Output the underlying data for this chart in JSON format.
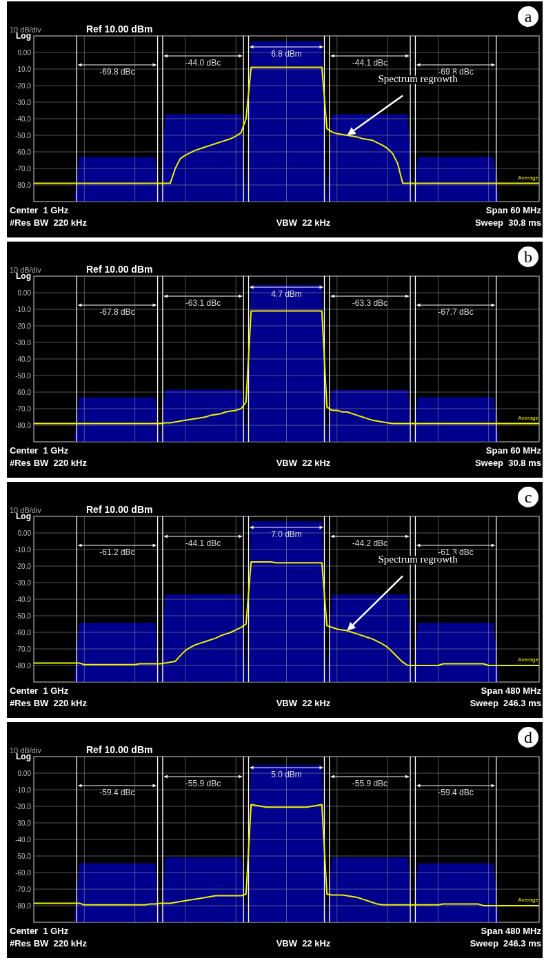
{
  "chart_data": [
    {
      "type": "line",
      "title": "a",
      "categories": [
        null,
        null,
        null,
        null,
        null,
        null,
        null,
        null,
        null,
        null,
        null,
        null,
        null,
        null,
        null,
        null,
        null,
        null,
        null,
        null,
        null,
        null,
        null,
        null,
        null,
        null,
        null,
        null,
        null,
        null,
        null,
        null,
        null,
        null,
        null,
        null,
        null,
        null,
        null,
        null,
        null,
        null,
        null,
        null,
        null,
        null,
        null,
        null,
        null,
        null,
        null,
        null,
        null,
        null,
        null,
        null,
        null,
        null,
        null,
        null,
        null,
        null,
        null,
        null,
        null,
        null,
        null,
        null,
        null,
        null,
        null,
        null,
        null,
        null,
        null,
        null,
        null,
        null,
        null,
        null,
        null,
        null,
        null,
        null,
        null,
        null,
        null,
        null,
        null,
        null,
        null,
        null,
        null,
        null,
        null,
        null,
        null,
        null,
        null,
        null,
        null
      ],
      "series": [
        {
          "type": "area",
          "color": "#00008c",
          "values": [
            -90,
            -90,
            -90,
            -90,
            -90,
            -90,
            -90,
            -90,
            -90,
            -63.0,
            -63.0,
            -63.0,
            -63.0,
            -63.0,
            -63.0,
            -63.0,
            -63.0,
            -63.0,
            -63.0,
            -63.0,
            -63.0,
            -63.0,
            -63.0,
            -63.0,
            -63.0,
            -90,
            -37.2,
            -37.2,
            -37.2,
            -37.2,
            -37.2,
            -37.2,
            -37.2,
            -37.2,
            -37.2,
            -37.2,
            -37.2,
            -37.2,
            -37.2,
            -37.2,
            -37.2,
            -37.2,
            -90,
            6.8,
            6.8,
            6.8,
            6.8,
            6.8,
            6.8,
            6.8,
            6.8,
            6.8,
            6.8,
            6.8,
            6.8,
            6.8,
            6.8,
            6.8,
            -90,
            -37.3,
            -37.3,
            -37.3,
            -37.3,
            -37.3,
            -37.3,
            -37.3,
            -37.3,
            -37.3,
            -37.3,
            -37.3,
            -37.3,
            -37.3,
            -37.3,
            -37.3,
            -37.3,
            -90,
            -63.0,
            -63.0,
            -63.0,
            -63.0,
            -63.0,
            -63.0,
            -63.0,
            -63.0,
            -63.0,
            -63.0,
            -63.0,
            -63.0,
            -63.0,
            -63.0,
            -63.0,
            -63.0,
            -90,
            -90,
            -90,
            -90,
            -90,
            -90,
            -90,
            -90,
            -90
          ]
        },
        {
          "type": "line",
          "color": "#f2f200",
          "values": [
            -79,
            -79,
            -79,
            -79,
            -79,
            -79,
            -79,
            -79,
            -79,
            -79,
            -79,
            -79,
            -79,
            -79,
            -79,
            -79,
            -79,
            -79,
            -79,
            -79,
            -79,
            -79,
            -79,
            -79,
            -79,
            -79,
            -79,
            -79,
            -70,
            -64,
            -62,
            -60.5,
            -59,
            -58,
            -57,
            -56,
            -55,
            -54,
            -53,
            -52,
            -50.5,
            -48.5,
            -40,
            -9,
            -9,
            -9,
            -9,
            -9,
            -9,
            -9,
            -9,
            -9,
            -9,
            -9,
            -9,
            -9,
            -9,
            -9,
            -46,
            -48,
            -49,
            -49.5,
            -50,
            -50.5,
            -51,
            -52,
            -52.5,
            -53,
            -54.5,
            -56,
            -58,
            -61,
            -67,
            -79,
            -79,
            -79,
            -79,
            -79,
            -79,
            -79,
            -79,
            -79,
            -79,
            -79,
            -79,
            -79,
            -79,
            -79,
            -79,
            -79,
            -79,
            -79,
            -79,
            -79,
            -79,
            -79,
            -79,
            -79,
            -79,
            -79,
            -79
          ]
        }
      ],
      "ylim": [
        -90,
        10
      ],
      "yticks": [
        {
          "value": 10,
          "label": "Log"
        },
        {
          "value": 0,
          "label": "0.00"
        },
        {
          "value": -10,
          "label": "-10.0"
        },
        {
          "value": -20,
          "label": "-20.0"
        },
        {
          "value": -30,
          "label": "-30.0"
        },
        {
          "value": -40,
          "label": "-40.0"
        },
        {
          "value": -50,
          "label": "-50.0"
        },
        {
          "value": -60,
          "label": "-60.0"
        },
        {
          "value": -70,
          "label": "-70.0"
        },
        {
          "value": -80,
          "label": "-80.0"
        },
        {
          "value": -90,
          "label": null
        }
      ],
      "grid": true,
      "tick_labels": "y",
      "annotations": [
        "10 dB/div",
        "Ref 10.00 dBm",
        "-69.8 dBc",
        "-44.0 dBc",
        "6.8 dBm",
        "-44.1 dBc",
        "-69.8 dBc",
        "Center  1 GHz",
        "#Res BW  220 kHz",
        "VBW  22 kHz",
        "Span 60 MHz",
        "Sweep  30.8 ms",
        "Average",
        "Spectrum regrowth"
      ]
    },
    {
      "type": "line",
      "title": "b",
      "categories": [
        null,
        null,
        null,
        null,
        null,
        null,
        null,
        null,
        null,
        null,
        null,
        null,
        null,
        null,
        null,
        null,
        null,
        null,
        null,
        null,
        null,
        null,
        null,
        null,
        null,
        null,
        null,
        null,
        null,
        null,
        null,
        null,
        null,
        null,
        null,
        null,
        null,
        null,
        null,
        null,
        null,
        null,
        null,
        null,
        null,
        null,
        null,
        null,
        null,
        null,
        null,
        null,
        null,
        null,
        null,
        null,
        null,
        null,
        null,
        null,
        null,
        null,
        null,
        null,
        null,
        null,
        null,
        null,
        null,
        null,
        null,
        null,
        null,
        null,
        null,
        null,
        null,
        null,
        null,
        null,
        null,
        null,
        null,
        null,
        null,
        null,
        null,
        null,
        null,
        null,
        null,
        null,
        null,
        null,
        null,
        null,
        null,
        null,
        null,
        null,
        null
      ],
      "series": [
        {
          "type": "area",
          "color": "#00008c",
          "values": [
            -90,
            -90,
            -90,
            -90,
            -90,
            -90,
            -90,
            -90,
            -90,
            -63.1,
            -63.1,
            -63.1,
            -63.1,
            -63.1,
            -63.1,
            -63.1,
            -63.1,
            -63.1,
            -63.1,
            -63.1,
            -63.1,
            -63.1,
            -63.1,
            -63.1,
            -63.1,
            -90,
            -58.4,
            -58.4,
            -58.4,
            -58.4,
            -58.4,
            -58.4,
            -58.4,
            -58.4,
            -58.4,
            -58.4,
            -58.4,
            -58.4,
            -58.4,
            -58.4,
            -58.4,
            -58.4,
            -90,
            4.7,
            4.7,
            4.7,
            4.7,
            4.7,
            4.7,
            4.7,
            4.7,
            4.7,
            4.7,
            4.7,
            4.7,
            4.7,
            4.7,
            4.7,
            -90,
            -58.6,
            -58.6,
            -58.6,
            -58.6,
            -58.6,
            -58.6,
            -58.6,
            -58.6,
            -58.6,
            -58.6,
            -58.6,
            -58.6,
            -58.6,
            -58.6,
            -58.6,
            -58.6,
            -90,
            -63.0,
            -63.0,
            -63.0,
            -63.0,
            -63.0,
            -63.0,
            -63.0,
            -63.0,
            -63.0,
            -63.0,
            -63.0,
            -63.0,
            -63.0,
            -63.0,
            -63.0,
            -63.0,
            -90,
            -90,
            -90,
            -90,
            -90,
            -90,
            -90,
            -90,
            -90
          ]
        },
        {
          "type": "line",
          "color": "#f2f200",
          "values": [
            -79,
            -79,
            -79,
            -79,
            -79,
            -79,
            -79,
            -79,
            -79,
            -79,
            -79,
            -79,
            -79,
            -79,
            -79,
            -79,
            -79,
            -79,
            -79,
            -79,
            -79,
            -79,
            -79,
            -79,
            -79,
            -79,
            -78.5,
            -78.5,
            -78,
            -77.5,
            -77,
            -76.5,
            -76,
            -75.5,
            -75,
            -74,
            -73.5,
            -73,
            -72,
            -71.5,
            -71,
            -70,
            -66,
            -11,
            -11,
            -11,
            -11,
            -11,
            -11,
            -11,
            -11,
            -11,
            -11,
            -11,
            -11,
            -11,
            -11,
            -11,
            -69,
            -71,
            -71,
            -72,
            -72,
            -73,
            -74,
            -75,
            -76,
            -77,
            -77.5,
            -78,
            -78.5,
            -79,
            -79,
            -79,
            -79,
            -79,
            -79,
            -79,
            -79,
            -79,
            -79,
            -79,
            -79,
            -79,
            -79,
            -79,
            -79,
            -79,
            -79,
            -79,
            -79,
            -79,
            -79,
            -79,
            -79,
            -79,
            -79,
            -79,
            -79,
            -79,
            -79
          ]
        }
      ],
      "ylim": [
        -90,
        10
      ],
      "yticks": [
        {
          "value": 10,
          "label": "Log"
        },
        {
          "value": 0,
          "label": "0.00"
        },
        {
          "value": -10,
          "label": "-10.0"
        },
        {
          "value": -20,
          "label": "-20.0"
        },
        {
          "value": -30,
          "label": "-30.0"
        },
        {
          "value": -40,
          "label": "-40.0"
        },
        {
          "value": -50,
          "label": "-50.0"
        },
        {
          "value": -60,
          "label": "-60.0"
        },
        {
          "value": -70,
          "label": "-70.0"
        },
        {
          "value": -80,
          "label": "-80.0"
        },
        {
          "value": -90,
          "label": null
        }
      ],
      "grid": true,
      "tick_labels": "y",
      "annotations": [
        "10 dB/div",
        "Ref 10.00 dBm",
        "-67.8 dBc",
        "-63.1 dBc",
        "4.7 dBm",
        "-63.3 dBc",
        "-67.7 dBc",
        "Center  1 GHz",
        "#Res BW  220 kHz",
        "VBW  22 kHz",
        "Span 60 MHz",
        "Sweep  30.8 ms",
        "Average"
      ]
    },
    {
      "type": "line",
      "title": "c",
      "categories": [
        null,
        null,
        null,
        null,
        null,
        null,
        null,
        null,
        null,
        null,
        null,
        null,
        null,
        null,
        null,
        null,
        null,
        null,
        null,
        null,
        null,
        null,
        null,
        null,
        null,
        null,
        null,
        null,
        null,
        null,
        null,
        null,
        null,
        null,
        null,
        null,
        null,
        null,
        null,
        null,
        null,
        null,
        null,
        null,
        null,
        null,
        null,
        null,
        null,
        null,
        null,
        null,
        null,
        null,
        null,
        null,
        null,
        null,
        null,
        null,
        null,
        null,
        null,
        null,
        null,
        null,
        null,
        null,
        null,
        null,
        null,
        null,
        null,
        null,
        null,
        null,
        null,
        null,
        null,
        null,
        null,
        null,
        null,
        null,
        null,
        null,
        null,
        null,
        null,
        null,
        null,
        null,
        null,
        null,
        null,
        null,
        null,
        null,
        null,
        null,
        null
      ],
      "series": [
        {
          "type": "area",
          "color": "#00008c",
          "values": [
            -90,
            -90,
            -90,
            -90,
            -90,
            -90,
            -90,
            -90,
            -90,
            -54.2,
            -54.2,
            -54.2,
            -54.2,
            -54.2,
            -54.2,
            -54.2,
            -54.2,
            -54.2,
            -54.2,
            -54.2,
            -54.2,
            -54.2,
            -54.2,
            -54.2,
            -54.2,
            -90,
            -37.1,
            -37.1,
            -37.1,
            -37.1,
            -37.1,
            -37.1,
            -37.1,
            -37.1,
            -37.1,
            -37.1,
            -37.1,
            -37.1,
            -37.1,
            -37.1,
            -37.1,
            -37.1,
            -90,
            7.0,
            7.0,
            7.0,
            7.0,
            7.0,
            7.0,
            7.0,
            7.0,
            7.0,
            7.0,
            7.0,
            7.0,
            7.0,
            7.0,
            7.0,
            -90,
            -37.2,
            -37.2,
            -37.2,
            -37.2,
            -37.2,
            -37.2,
            -37.2,
            -37.2,
            -37.2,
            -37.2,
            -37.2,
            -37.2,
            -37.2,
            -37.2,
            -37.2,
            -37.2,
            -90,
            -54.3,
            -54.3,
            -54.3,
            -54.3,
            -54.3,
            -54.3,
            -54.3,
            -54.3,
            -54.3,
            -54.3,
            -54.3,
            -54.3,
            -54.3,
            -54.3,
            -54.3,
            -54.3,
            -90,
            -90,
            -90,
            -90,
            -90,
            -90,
            -90,
            -90,
            -90
          ]
        },
        {
          "type": "line",
          "color": "#f2f200",
          "values": [
            -78.5,
            -78.5,
            -78.5,
            -78.5,
            -78.5,
            -78.5,
            -78.5,
            -78.5,
            -78.5,
            -78.5,
            -79.5,
            -79.5,
            -79.5,
            -79.5,
            -79.5,
            -79.5,
            -79.5,
            -79.5,
            -79.5,
            -79.5,
            -79.5,
            -79,
            -79,
            -79,
            -79,
            -79,
            -78.5,
            -78,
            -77.5,
            -74,
            -71,
            -69,
            -67.5,
            -66.5,
            -65.5,
            -64.5,
            -63.5,
            -62,
            -61,
            -60,
            -58.5,
            -57,
            -55,
            -17.5,
            -17.5,
            -17.5,
            -17.5,
            -17.5,
            -18,
            -18,
            -18,
            -18,
            -18,
            -18,
            -18,
            -18,
            -18,
            -18,
            -56,
            -57,
            -58,
            -58.5,
            -59,
            -60,
            -61,
            -62,
            -63,
            -64,
            -65.5,
            -67,
            -69,
            -72,
            -75,
            -78,
            -80,
            -80,
            -80,
            -80,
            -80,
            -80,
            -80,
            -79,
            -79,
            -79,
            -79,
            -79,
            -79,
            -79,
            -79,
            -79,
            -80,
            -80,
            -80,
            -80,
            -80,
            -80,
            -80,
            -80,
            -80,
            -80,
            -80
          ]
        }
      ],
      "ylim": [
        -90,
        10
      ],
      "yticks": [
        {
          "value": 10,
          "label": "Log"
        },
        {
          "value": 0,
          "label": "0.00"
        },
        {
          "value": -10,
          "label": "-10.0"
        },
        {
          "value": -20,
          "label": "-20.0"
        },
        {
          "value": -30,
          "label": "-30.0"
        },
        {
          "value": -40,
          "label": "-40.0"
        },
        {
          "value": -50,
          "label": "-50.0"
        },
        {
          "value": -60,
          "label": "-60.0"
        },
        {
          "value": -70,
          "label": "-70.0"
        },
        {
          "value": -80,
          "label": "-80.0"
        },
        {
          "value": -90,
          "label": null
        }
      ],
      "grid": true,
      "tick_labels": "y",
      "annotations": [
        "10 dB/div",
        "Ref 10.00 dBm",
        "-61.2 dBc",
        "-44.1 dBc",
        "7.0 dBm",
        "-44.2 dBc",
        "-61.3 dBc",
        "Center  1 GHz",
        "#Res BW  220 kHz",
        "VBW  22 kHz",
        "Span 480 MHz",
        "Sweep  246.3 ms",
        "Average",
        "Spectrum regrowth"
      ]
    },
    {
      "type": "line",
      "title": "d",
      "categories": [
        null,
        null,
        null,
        null,
        null,
        null,
        null,
        null,
        null,
        null,
        null,
        null,
        null,
        null,
        null,
        null,
        null,
        null,
        null,
        null,
        null,
        null,
        null,
        null,
        null,
        null,
        null,
        null,
        null,
        null,
        null,
        null,
        null,
        null,
        null,
        null,
        null,
        null,
        null,
        null,
        null,
        null,
        null,
        null,
        null,
        null,
        null,
        null,
        null,
        null,
        null,
        null,
        null,
        null,
        null,
        null,
        null,
        null,
        null,
        null,
        null,
        null,
        null,
        null,
        null,
        null,
        null,
        null,
        null,
        null,
        null,
        null,
        null,
        null,
        null,
        null,
        null,
        null,
        null,
        null,
        null,
        null,
        null,
        null,
        null,
        null,
        null,
        null,
        null,
        null,
        null,
        null,
        null,
        null,
        null,
        null,
        null,
        null,
        null,
        null,
        null
      ],
      "series": [
        {
          "type": "area",
          "color": "#00008c",
          "values": [
            -90,
            -90,
            -90,
            -90,
            -90,
            -90,
            -90,
            -90,
            -90,
            -54.4,
            -54.4,
            -54.4,
            -54.4,
            -54.4,
            -54.4,
            -54.4,
            -54.4,
            -54.4,
            -54.4,
            -54.4,
            -54.4,
            -54.4,
            -54.4,
            -54.4,
            -54.4,
            -90,
            -50.9,
            -50.9,
            -50.9,
            -50.9,
            -50.9,
            -50.9,
            -50.9,
            -50.9,
            -50.9,
            -50.9,
            -50.9,
            -50.9,
            -50.9,
            -50.9,
            -50.9,
            -50.9,
            -90,
            5.0,
            5.0,
            5.0,
            5.0,
            5.0,
            5.0,
            5.0,
            5.0,
            5.0,
            5.0,
            5.0,
            5.0,
            5.0,
            5.0,
            5.0,
            -90,
            -50.9,
            -50.9,
            -50.9,
            -50.9,
            -50.9,
            -50.9,
            -50.9,
            -50.9,
            -50.9,
            -50.9,
            -50.9,
            -50.9,
            -50.9,
            -50.9,
            -50.9,
            -50.9,
            -90,
            -54.4,
            -54.4,
            -54.4,
            -54.4,
            -54.4,
            -54.4,
            -54.4,
            -54.4,
            -54.4,
            -54.4,
            -54.4,
            -54.4,
            -54.4,
            -54.4,
            -54.4,
            -54.4,
            -90,
            -90,
            -90,
            -90,
            -90,
            -90,
            -90,
            -90,
            -90
          ]
        },
        {
          "type": "line",
          "color": "#f2f200",
          "values": [
            -78.5,
            -78.5,
            -78.5,
            -78.5,
            -78.5,
            -78.5,
            -78.5,
            -78.5,
            -78.5,
            -78.5,
            -79.5,
            -79.5,
            -79.5,
            -79.5,
            -79.5,
            -79.5,
            -79.5,
            -79.5,
            -79.5,
            -79.5,
            -79.5,
            -79.5,
            -79.5,
            -79,
            -79,
            -78.5,
            -78.5,
            -78.5,
            -78,
            -77.5,
            -77,
            -76.5,
            -76,
            -75.5,
            -75,
            -74.5,
            -74,
            -74,
            -74,
            -74,
            -74,
            -74,
            -73,
            -19,
            -19.5,
            -20,
            -20.5,
            -20.5,
            -20.5,
            -20.5,
            -20.5,
            -20.5,
            -20.5,
            -20.5,
            -20.5,
            -20,
            -19.5,
            -19,
            -73,
            -73.5,
            -73.5,
            -73.5,
            -74,
            -74.5,
            -75,
            -76,
            -77,
            -78,
            -79,
            -79.5,
            -79.5,
            -79.5,
            -79.5,
            -79.5,
            -79.5,
            -79.5,
            -79.5,
            -79.5,
            -79.5,
            -79.5,
            -79.5,
            -79,
            -79,
            -79,
            -79,
            -79,
            -79,
            -79,
            -79,
            -80,
            -80,
            -80,
            -80,
            -80,
            -80,
            -80,
            -80,
            -80,
            -80,
            -80,
            -80
          ]
        }
      ],
      "ylim": [
        -90,
        10
      ],
      "yticks": [
        {
          "value": 10,
          "label": "Log"
        },
        {
          "value": 0,
          "label": "0.00"
        },
        {
          "value": -10,
          "label": "-10.0"
        },
        {
          "value": -20,
          "label": "-20.0"
        },
        {
          "value": -30,
          "label": "-30.0"
        },
        {
          "value": -40,
          "label": "-40.0"
        },
        {
          "value": -50,
          "label": "-50.0"
        },
        {
          "value": -60,
          "label": "-60.0"
        },
        {
          "value": -70,
          "label": "-70.0"
        },
        {
          "value": -80,
          "label": "-80.0"
        },
        {
          "value": -90,
          "label": null
        }
      ],
      "grid": true,
      "tick_labels": "y",
      "annotations": [
        "10 dB/div",
        "Ref 10.00 dBm",
        "-59.4 dBc",
        "-55.9 dBc",
        "5.0 dBm",
        "-55.9 dBc",
        "-59.4 dBc",
        "Center  1 GHz",
        "#Res BW  220 kHz",
        "VBW  22 kHz",
        "Span 480 MHz",
        "Sweep  246.3 ms",
        "Average"
      ]
    }
  ]
}
